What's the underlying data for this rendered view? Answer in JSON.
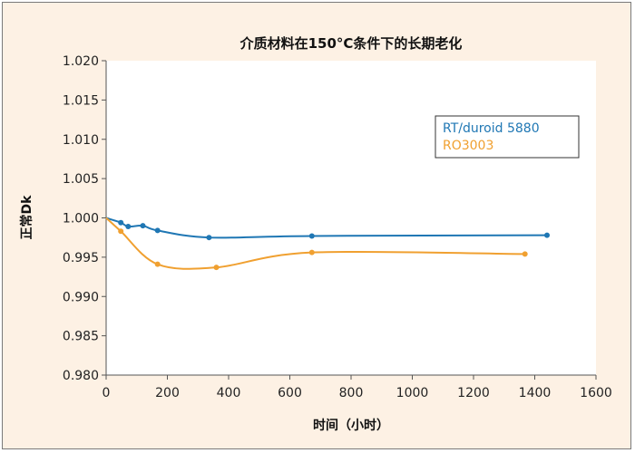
{
  "chart_data": {
    "type": "line",
    "title": "介质材料在150°C条件下的长期老化",
    "xlabel": "时间（小时）",
    "ylabel": "正常Dk",
    "xlim": [
      0,
      1600
    ],
    "ylim": [
      0.98,
      1.02
    ],
    "xticks": [
      0,
      200,
      400,
      600,
      800,
      1000,
      1200,
      1400,
      1600
    ],
    "yticks": [
      0.98,
      0.985,
      0.99,
      0.995,
      1.0,
      1.005,
      1.01,
      1.015,
      1.02
    ],
    "xtick_labels": [
      "0",
      "200",
      "400",
      "600",
      "800",
      "1000",
      "1200",
      "1400",
      "1600"
    ],
    "ytick_labels": [
      "0.980",
      "0.985",
      "0.990",
      "0.995",
      "1.000",
      "1.005",
      "1.010",
      "1.015",
      "1.020"
    ],
    "grid": "none",
    "legend_position": "right",
    "series": [
      {
        "name": "RT/duroid 5880",
        "color": "#1f77b4",
        "x": [
          0,
          48,
          72,
          120,
          168,
          336,
          672,
          1440
        ],
        "y": [
          1.0,
          0.9994,
          0.9989,
          0.999,
          0.9984,
          0.9975,
          0.9977,
          0.9978
        ]
      },
      {
        "name": "RO3003",
        "color": "#f0a030",
        "x": [
          0,
          48,
          168,
          360,
          672,
          1368
        ],
        "y": [
          1.0,
          0.9983,
          0.9941,
          0.9937,
          0.9956,
          0.9954
        ]
      }
    ]
  }
}
